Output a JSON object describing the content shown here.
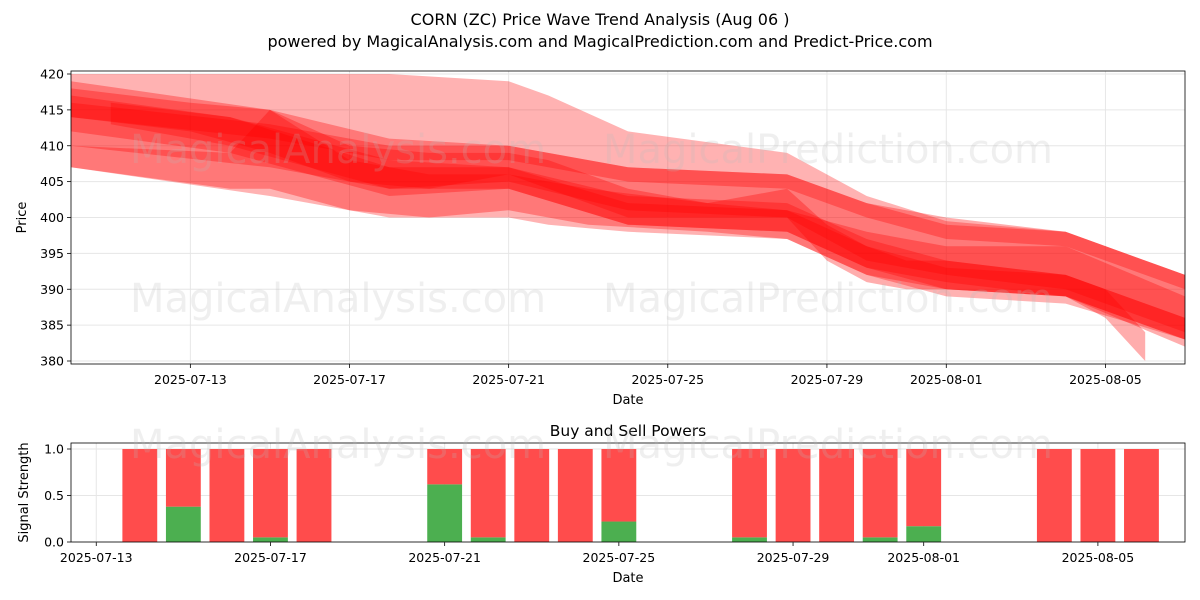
{
  "title": "CORN (ZC) Price Wave Trend Analysis (Aug 06 )",
  "subtitle": "powered by MagicalAnalysis.com and MagicalPrediction.com and Predict-Price.com",
  "watermarks": [
    "MagicalAnalysis.com",
    "MagicalPrediction.com"
  ],
  "colors": {
    "band": "#ff0000",
    "buy": "#4caf50",
    "sell": "#ff4c4c",
    "grid": "#e6e6e6"
  },
  "chart_data": [
    {
      "type": "area",
      "xlabel": "Date",
      "ylabel": "Price",
      "ylim": [
        380,
        420
      ],
      "yticks": [
        380,
        385,
        390,
        395,
        400,
        405,
        410,
        415,
        420
      ],
      "xticks": [
        "2025-07-13",
        "2025-07-17",
        "2025-07-21",
        "2025-07-25",
        "2025-07-29",
        "2025-08-01",
        "2025-08-05"
      ],
      "xlim": [
        "2025-07-10",
        "2025-08-07"
      ],
      "grid": true,
      "bands": [
        {
          "x": [
            "2025-07-10",
            "2025-07-15",
            "2025-07-18",
            "2025-07-21",
            "2025-07-22",
            "2025-07-24",
            "2025-07-28",
            "2025-07-30",
            "2025-08-01",
            "2025-08-04",
            "2025-08-07"
          ],
          "upper": [
            420,
            420,
            420,
            419,
            417,
            412,
            409,
            403,
            399.5,
            398,
            392
          ],
          "lower": [
            407,
            403,
            400,
            400,
            399,
            398,
            397,
            392,
            389,
            388,
            383
          ]
        },
        {
          "x": [
            "2025-07-10",
            "2025-07-15",
            "2025-07-18",
            "2025-07-21",
            "2025-07-24",
            "2025-07-28",
            "2025-07-30",
            "2025-08-01",
            "2025-08-04",
            "2025-08-07"
          ],
          "upper": [
            419,
            415,
            411,
            410,
            407,
            406,
            402,
            400,
            398,
            392
          ],
          "lower": [
            410,
            407,
            404,
            405,
            401,
            400,
            394,
            392,
            390,
            384
          ]
        },
        {
          "x": [
            "2025-07-10",
            "2025-07-14",
            "2025-07-15",
            "2025-07-17",
            "2025-07-19",
            "2025-07-21",
            "2025-07-23",
            "2025-07-26",
            "2025-07-28",
            "2025-07-30",
            "2025-08-01",
            "2025-08-04",
            "2025-08-07"
          ],
          "upper": [
            410,
            409,
            415,
            408,
            406,
            406,
            404,
            402,
            401,
            398,
            396,
            396,
            389
          ],
          "lower": [
            407,
            404,
            404,
            401,
            400,
            401,
            399,
            398,
            397,
            392,
            390,
            389,
            383
          ]
        },
        {
          "x": [
            "2025-07-11",
            "2025-07-14",
            "2025-07-18",
            "2025-07-21",
            "2025-07-24",
            "2025-07-28",
            "2025-07-30",
            "2025-08-01",
            "2025-08-04",
            "2025-08-07"
          ],
          "upper": [
            416,
            414,
            407,
            407,
            402,
            401,
            396,
            393,
            392,
            386
          ],
          "lower": [
            413,
            410,
            404,
            404,
            399,
            398,
            393,
            390,
            389,
            383
          ]
        },
        {
          "x": [
            "2025-07-10",
            "2025-07-14",
            "2025-07-18",
            "2025-07-21",
            "2025-07-24",
            "2025-07-28",
            "2025-07-30",
            "2025-08-01",
            "2025-08-04",
            "2025-08-07"
          ],
          "upper": [
            417,
            414,
            408,
            407,
            403,
            402,
            397,
            394,
            392,
            386
          ],
          "lower": [
            412,
            409,
            403,
            404,
            399,
            398,
            393,
            391,
            389,
            382
          ]
        },
        {
          "x": [
            "2025-07-10",
            "2025-07-13",
            "2025-07-15",
            "2025-07-17",
            "2025-07-19",
            "2025-07-21",
            "2025-07-22",
            "2025-07-24",
            "2025-07-26",
            "2025-07-28",
            "2025-07-29",
            "2025-07-30",
            "2025-07-31",
            "2025-08-01",
            "2025-08-04",
            "2025-08-05",
            "2025-08-06"
          ],
          "upper": [
            418,
            416,
            415,
            410,
            409,
            409,
            408,
            404,
            402,
            404,
            399,
            396,
            394,
            394,
            392,
            390,
            384
          ],
          "lower": [
            414,
            412,
            409,
            405,
            404,
            406,
            404,
            400,
            400,
            400,
            394,
            391,
            390,
            390,
            389,
            386,
            380
          ]
        },
        {
          "x": [
            "2025-07-10",
            "2025-07-15",
            "2025-07-18",
            "2025-07-21",
            "2025-07-24",
            "2025-07-28",
            "2025-07-30",
            "2025-08-01",
            "2025-08-04",
            "2025-08-07"
          ],
          "upper": [
            416,
            413,
            410,
            410,
            407,
            406,
            402,
            399,
            398,
            392
          ],
          "lower": [
            414,
            411,
            408,
            408,
            405,
            404,
            400,
            397,
            396,
            390
          ]
        }
      ]
    },
    {
      "type": "bar",
      "title": "Buy and Sell Powers",
      "xlabel": "Date",
      "ylabel": "Signal Strength",
      "ylim": [
        0,
        1
      ],
      "yticks": [
        "0.0",
        "0.5",
        "1.0"
      ],
      "xticks": [
        "2025-07-13",
        "2025-07-17",
        "2025-07-21",
        "2025-07-25",
        "2025-07-29",
        "2025-08-01",
        "2025-08-05"
      ],
      "xlim": [
        "2025-07-12",
        "2025-08-07"
      ],
      "categories": [
        "2025-07-14",
        "2025-07-15",
        "2025-07-16",
        "2025-07-17",
        "2025-07-18",
        "2025-07-21",
        "2025-07-22",
        "2025-07-23",
        "2025-07-24",
        "2025-07-25",
        "2025-07-28",
        "2025-07-29",
        "2025-07-30",
        "2025-07-31",
        "2025-08-01",
        "2025-08-04",
        "2025-08-05",
        "2025-08-06"
      ],
      "series": [
        {
          "name": "Buy",
          "values": [
            0,
            0.38,
            0,
            0.05,
            0,
            0.62,
            0.05,
            0,
            0,
            0.22,
            0.05,
            0,
            0,
            0.05,
            0.17,
            0,
            0,
            0
          ]
        },
        {
          "name": "Sell",
          "values": [
            1,
            0.62,
            1,
            0.95,
            1,
            0.38,
            0.95,
            1,
            1,
            0.78,
            0.95,
            1,
            1,
            0.95,
            0.83,
            1,
            1,
            1
          ]
        }
      ]
    }
  ]
}
